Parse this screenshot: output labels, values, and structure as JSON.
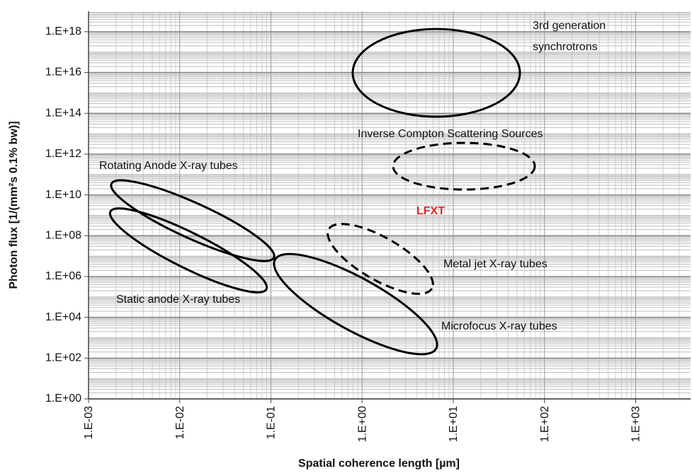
{
  "chart_data": {
    "type": "scatter",
    "x_label": "Spatial coherence length [µm]",
    "y_label": "Photon flux [1/(mm²s 0.1% bw)]",
    "xscale": "log",
    "yscale": "log",
    "grid": true,
    "xlim": [
      0.001,
      4000
    ],
    "ylim": [
      1,
      1e+19
    ],
    "xticks": [
      {
        "value": 0.001,
        "label": "1.E-03"
      },
      {
        "value": 0.01,
        "label": "1.E-02"
      },
      {
        "value": 0.1,
        "label": "1.E-01"
      },
      {
        "value": 1,
        "label": "1.E+00"
      },
      {
        "value": 10,
        "label": "1.E+01"
      },
      {
        "value": 100,
        "label": "1.E+02"
      },
      {
        "value": 1000,
        "label": "1.E+03"
      }
    ],
    "yticks": [
      {
        "value": 1,
        "label": "1.E+00"
      },
      {
        "value": 100,
        "label": "1.E+02"
      },
      {
        "value": 10000,
        "label": "1.E+04"
      },
      {
        "value": 1000000,
        "label": "1.E+06"
      },
      {
        "value": 100000000,
        "label": "1.E+08"
      },
      {
        "value": 10000000000,
        "label": "1.E+10"
      },
      {
        "value": 1000000000000,
        "label": "1.E+12"
      },
      {
        "value": 100000000000000,
        "label": "1.E+14"
      },
      {
        "value": 10000000000000000,
        "label": "1.E+16"
      },
      {
        "value": 1000000000000000000,
        "label": "1.E+18"
      }
    ],
    "annotations": [
      "3rd generation",
      "synchrotrons",
      "Inverse Compton Scattering Sources",
      "Rotating Anode X-ray tubes",
      "LFXT",
      "Metal jet X-ray tubes",
      "Static anode X-ray tubes",
      "Microfocus X-ray tubes"
    ]
  }
}
